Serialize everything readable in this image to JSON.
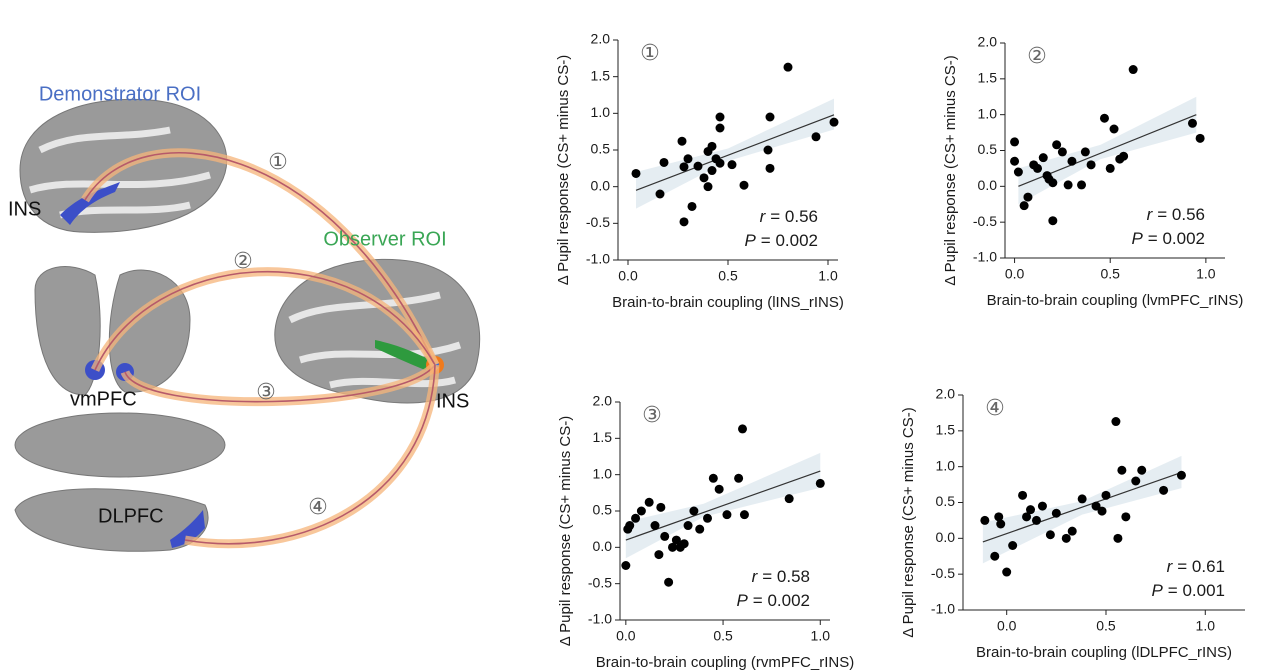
{
  "diagram": {
    "demonstrator_label": "Demonstrator ROI",
    "observer_label": "Observer ROI",
    "regions": [
      "INS",
      "vmPFC",
      "DLPFC",
      "INS"
    ],
    "links": [
      "①",
      "②",
      "③",
      "④"
    ]
  },
  "chart_data": [
    {
      "type": "scatter",
      "panel_label": "①",
      "x_label": "Brain-to-brain coupling (lINS_rINS)",
      "y_label": "Δ Pupil response (CS+ minus CS-)",
      "xlim": [
        -0.05,
        1.05
      ],
      "ylim": [
        -1,
        2
      ],
      "xticks": [
        {
          "value": 0,
          "label": "0.0"
        },
        {
          "value": 0.5,
          "label": "0.5"
        },
        {
          "value": 1,
          "label": "1.0"
        }
      ],
      "yticks": [
        {
          "value": -1,
          "label": "-1.0"
        },
        {
          "value": -0.5,
          "label": "-0.5"
        },
        {
          "value": 0,
          "label": "0.0"
        },
        {
          "value": 0.5,
          "label": "0.5"
        },
        {
          "value": 1,
          "label": "1.0"
        },
        {
          "value": 1.5,
          "label": "1.5"
        },
        {
          "value": 2,
          "label": "2.0"
        }
      ],
      "color": "#000000",
      "x": [
        0.04,
        0.16,
        0.18,
        0.27,
        0.28,
        0.28,
        0.3,
        0.32,
        0.35,
        0.38,
        0.4,
        0.4,
        0.42,
        0.42,
        0.44,
        0.46,
        0.46,
        0.46,
        0.52,
        0.58,
        0.7,
        0.71,
        0.71,
        0.8,
        0.94,
        1.03
      ],
      "values": [
        0.18,
        -0.1,
        0.33,
        0.62,
        0.27,
        -0.48,
        0.38,
        -0.27,
        0.28,
        0.12,
        0.48,
        0.0,
        0.22,
        0.55,
        0.38,
        0.8,
        0.95,
        0.32,
        0.3,
        0.02,
        0.5,
        0.25,
        0.95,
        1.63,
        0.68,
        0.88
      ],
      "trend": {
        "x": [
          0.04,
          1.03
        ],
        "y": [
          -0.05,
          0.98
        ]
      },
      "ci": {
        "x": [
          0.04,
          0.5,
          1.03
        ],
        "lower": [
          -0.3,
          0.35,
          0.78
        ],
        "upper": [
          0.2,
          0.52,
          1.2
        ]
      },
      "r_symbol": "r",
      "r_text": "= 0.56",
      "p_symbol": "P",
      "p_text": "= 0.002"
    },
    {
      "type": "scatter",
      "panel_label": "②",
      "x_label": "Brain-to-brain coupling (lvmPFC_rINS)",
      "y_label": "Δ Pupil response (CS+ minus CS-)",
      "xlim": [
        -0.05,
        1.1
      ],
      "ylim": [
        -1,
        2
      ],
      "xticks": [
        {
          "value": 0,
          "label": "0.0"
        },
        {
          "value": 0.5,
          "label": "0.5"
        },
        {
          "value": 1,
          "label": "1.0"
        }
      ],
      "yticks": [
        {
          "value": -1,
          "label": "-1.0"
        },
        {
          "value": -0.5,
          "label": "-0.5"
        },
        {
          "value": 0,
          "label": "0.0"
        },
        {
          "value": 0.5,
          "label": "0.5"
        },
        {
          "value": 1,
          "label": "1.0"
        },
        {
          "value": 1.5,
          "label": "1.5"
        },
        {
          "value": 2,
          "label": "2.0"
        }
      ],
      "color": "#000000",
      "x": [
        0.0,
        0.0,
        0.02,
        0.05,
        0.07,
        0.1,
        0.12,
        0.15,
        0.17,
        0.18,
        0.2,
        0.2,
        0.22,
        0.25,
        0.28,
        0.3,
        0.35,
        0.37,
        0.4,
        0.47,
        0.5,
        0.52,
        0.55,
        0.57,
        0.62,
        0.93,
        0.97
      ],
      "values": [
        0.35,
        0.62,
        0.2,
        -0.27,
        -0.15,
        0.3,
        0.25,
        0.4,
        0.15,
        0.1,
        -0.48,
        0.05,
        0.58,
        0.48,
        0.02,
        0.35,
        0.02,
        0.48,
        0.3,
        0.95,
        0.25,
        0.8,
        0.38,
        0.42,
        1.63,
        0.88,
        0.67
      ],
      "trend": {
        "x": [
          0.02,
          0.95
        ],
        "y": [
          0.0,
          1.0
        ]
      },
      "ci": {
        "x": [
          0.02,
          0.45,
          0.95
        ],
        "lower": [
          -0.25,
          0.38,
          0.75
        ],
        "upper": [
          0.25,
          0.58,
          1.25
        ]
      },
      "r_symbol": "r",
      "r_text": "= 0.56",
      "p_symbol": "P",
      "p_text": "= 0.002"
    },
    {
      "type": "scatter",
      "panel_label": "③",
      "x_label": "Brain-to-brain coupling (rvmPFC_rINS)",
      "y_label": "Δ Pupil response (CS+ minus CS-)",
      "xlim": [
        -0.03,
        1.05
      ],
      "ylim": [
        -1,
        2
      ],
      "xticks": [
        {
          "value": 0,
          "label": "0.0"
        },
        {
          "value": 0.5,
          "label": "0.5"
        },
        {
          "value": 1,
          "label": "1.0"
        }
      ],
      "yticks": [
        {
          "value": -1,
          "label": "-1.0"
        },
        {
          "value": -0.5,
          "label": "-0.5"
        },
        {
          "value": 0,
          "label": "0.0"
        },
        {
          "value": 0.5,
          "label": "0.5"
        },
        {
          "value": 1,
          "label": "1.0"
        },
        {
          "value": 1.5,
          "label": "1.5"
        },
        {
          "value": 2,
          "label": "2.0"
        }
      ],
      "color": "#000000",
      "x": [
        0.0,
        0.01,
        0.02,
        0.05,
        0.08,
        0.12,
        0.15,
        0.17,
        0.18,
        0.2,
        0.22,
        0.24,
        0.26,
        0.28,
        0.3,
        0.32,
        0.35,
        0.38,
        0.42,
        0.45,
        0.48,
        0.52,
        0.58,
        0.6,
        0.61,
        0.84,
        1.0
      ],
      "values": [
        -0.25,
        0.25,
        0.3,
        0.4,
        0.5,
        0.62,
        0.3,
        -0.1,
        0.55,
        0.15,
        -0.48,
        0.0,
        0.1,
        0.0,
        0.05,
        0.3,
        0.5,
        0.25,
        0.4,
        0.95,
        0.8,
        0.45,
        0.95,
        1.63,
        0.45,
        0.67,
        0.88
      ],
      "trend": {
        "x": [
          0.0,
          1.0
        ],
        "y": [
          0.1,
          1.05
        ]
      },
      "ci": {
        "x": [
          0.0,
          0.4,
          1.0
        ],
        "lower": [
          -0.15,
          0.42,
          0.82
        ],
        "upper": [
          0.35,
          0.6,
          1.3
        ]
      },
      "r_symbol": "r",
      "r_text": "= 0.58",
      "p_symbol": "P",
      "p_text": "= 0.002"
    },
    {
      "type": "scatter",
      "panel_label": "④",
      "x_label": "Brain-to-brain coupling (lDLPFC_rINS)",
      "y_label": "Δ Pupil response (CS+ minus CS-)",
      "xlim": [
        -0.22,
        1.2
      ],
      "ylim": [
        -1,
        2
      ],
      "xticks": [
        {
          "value": 0,
          "label": "0.0"
        },
        {
          "value": 0.5,
          "label": "0.5"
        },
        {
          "value": 1,
          "label": "1.0"
        }
      ],
      "yticks": [
        {
          "value": -1,
          "label": "-1.0"
        },
        {
          "value": -0.5,
          "label": "-0.5"
        },
        {
          "value": 0,
          "label": "0.0"
        },
        {
          "value": 0.5,
          "label": "0.5"
        },
        {
          "value": 1,
          "label": "1.0"
        },
        {
          "value": 1.5,
          "label": "1.5"
        },
        {
          "value": 2,
          "label": "2.0"
        }
      ],
      "color": "#000000",
      "x": [
        -0.11,
        -0.06,
        -0.04,
        -0.03,
        0.0,
        0.03,
        0.08,
        0.1,
        0.12,
        0.15,
        0.18,
        0.22,
        0.25,
        0.3,
        0.33,
        0.38,
        0.45,
        0.48,
        0.5,
        0.55,
        0.56,
        0.58,
        0.6,
        0.65,
        0.68,
        0.79,
        0.88
      ],
      "values": [
        0.25,
        -0.25,
        0.3,
        0.2,
        -0.47,
        -0.1,
        0.6,
        0.3,
        0.4,
        0.25,
        0.45,
        0.05,
        0.35,
        0.0,
        0.1,
        0.55,
        0.45,
        0.38,
        0.6,
        1.63,
        0.0,
        0.95,
        0.3,
        0.8,
        0.95,
        0.67,
        0.88
      ],
      "trend": {
        "x": [
          -0.12,
          0.88
        ],
        "y": [
          -0.05,
          0.92
        ]
      },
      "ci": {
        "x": [
          -0.12,
          0.38,
          0.88
        ],
        "lower": [
          -0.35,
          0.33,
          0.7
        ],
        "upper": [
          0.22,
          0.52,
          1.15
        ]
      },
      "r_symbol": "r",
      "r_text": "= 0.61",
      "p_symbol": "P",
      "p_text": "= 0.001"
    }
  ]
}
